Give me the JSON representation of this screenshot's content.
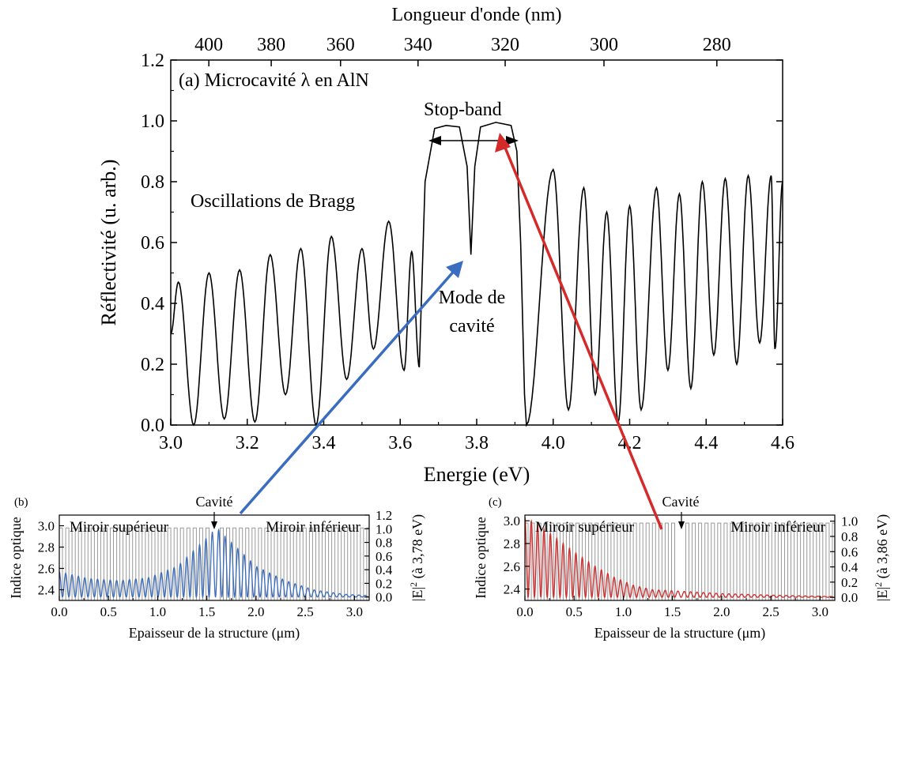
{
  "chart_data": [
    {
      "id": "a",
      "type": "line",
      "panel_label": "(a) Microcavité λ en AlN",
      "xlabel": "Energie (eV)",
      "ylabel": "Réflectivité (u. arb.)",
      "x2label": "Longueur d'onde (nm)",
      "xlim": [
        3.0,
        4.6
      ],
      "ylim": [
        0.0,
        1.2
      ],
      "xticks": [
        "3.0",
        "3.2",
        "3.4",
        "3.6",
        "3.8",
        "4.0",
        "4.2",
        "4.4",
        "4.6"
      ],
      "yticks": [
        "0.0",
        "0.2",
        "0.4",
        "0.6",
        "0.8",
        "1.0",
        "1.2"
      ],
      "x2ticks": [
        "400",
        "380",
        "360",
        "340",
        "320",
        "300",
        "280"
      ],
      "series_color": "#000000",
      "stopband_low_eV": 3.67,
      "stopband_high_eV": 3.92,
      "cavity_mode_eV": 3.78,
      "maxima": [
        [
          3.02,
          0.47
        ],
        [
          3.1,
          0.5
        ],
        [
          3.18,
          0.51
        ],
        [
          3.26,
          0.56
        ],
        [
          3.34,
          0.58
        ],
        [
          3.42,
          0.62
        ],
        [
          3.5,
          0.58
        ],
        [
          3.57,
          0.67
        ],
        [
          3.63,
          0.57
        ],
        [
          4.0,
          0.84
        ],
        [
          4.08,
          0.78
        ],
        [
          4.14,
          0.7
        ],
        [
          4.2,
          0.72
        ],
        [
          4.27,
          0.78
        ],
        [
          4.33,
          0.76
        ],
        [
          4.39,
          0.8
        ],
        [
          4.45,
          0.81
        ],
        [
          4.51,
          0.82
        ],
        [
          4.57,
          0.82
        ],
        [
          4.6,
          0.8
        ]
      ],
      "minima": [
        [
          3.0,
          0.3
        ],
        [
          3.06,
          0.0
        ],
        [
          3.14,
          0.02
        ],
        [
          3.22,
          0.01
        ],
        [
          3.3,
          0.1
        ],
        [
          3.38,
          0.0
        ],
        [
          3.46,
          0.15
        ],
        [
          3.53,
          0.25
        ],
        [
          3.61,
          0.18
        ],
        [
          3.65,
          0.19
        ],
        [
          3.93,
          0.0
        ],
        [
          4.04,
          0.05
        ],
        [
          4.11,
          0.1
        ],
        [
          4.17,
          0.01
        ],
        [
          4.23,
          0.05
        ],
        [
          4.3,
          0.18
        ],
        [
          4.36,
          0.12
        ],
        [
          4.42,
          0.23
        ],
        [
          4.48,
          0.2
        ],
        [
          4.54,
          0.27
        ],
        [
          4.58,
          0.25
        ]
      ],
      "annotations": {
        "stopband": "Stop-band",
        "bragg": "Oscillations de Bragg",
        "mode_line1": "Mode de",
        "mode_line2": "cavité"
      }
    },
    {
      "id": "b",
      "type": "line",
      "panel_label": "(b)",
      "xlabel": "Epaisseur de la structure (μm)",
      "ylabel": "Indice optique",
      "y2label": "|E|² (à 3,78 eV)",
      "xlim": [
        0.0,
        3.15
      ],
      "ylim": [
        2.3,
        3.1
      ],
      "y2lim": [
        -0.05,
        1.2
      ],
      "xticks": [
        "0.0",
        "0.5",
        "1.0",
        "1.5",
        "2.0",
        "2.5",
        "3.0"
      ],
      "yticks": [
        "2.4",
        "2.6",
        "2.8",
        "3.0"
      ],
      "y2ticks": [
        "0.0",
        "0.2",
        "0.4",
        "0.6",
        "0.8",
        "1.0",
        "1.2"
      ],
      "cavity_label": "Cavité",
      "mirror_top_label": "Miroir supérieur",
      "mirror_bottom_label": "Miroir inférieur",
      "index_low": 2.3,
      "index_high": 2.98,
      "cavity_x_um": 1.58,
      "field_color": "#3a6cc0",
      "index_color": "#999999",
      "field_envelope": [
        [
          0.0,
          0.37
        ],
        [
          0.3,
          0.27
        ],
        [
          0.6,
          0.24
        ],
        [
          0.9,
          0.28
        ],
        [
          1.2,
          0.45
        ],
        [
          1.45,
          0.8
        ],
        [
          1.6,
          1.01
        ],
        [
          1.75,
          0.8
        ],
        [
          2.0,
          0.45
        ],
        [
          2.3,
          0.24
        ],
        [
          2.6,
          0.1
        ],
        [
          2.9,
          0.04
        ],
        [
          3.15,
          0.02
        ]
      ]
    },
    {
      "id": "c",
      "type": "line",
      "panel_label": "(c)",
      "xlabel": "Epaisseur de la structure (μm)",
      "ylabel": "Indice optique",
      "y2label": "|E|² (à 3,86 eV)",
      "xlim": [
        0.0,
        3.15
      ],
      "ylim": [
        2.3,
        3.05
      ],
      "y2lim": [
        -0.04,
        1.08
      ],
      "xticks": [
        "0.0",
        "0.5",
        "1.0",
        "1.5",
        "2.0",
        "2.5",
        "3.0"
      ],
      "yticks": [
        "2.4",
        "2.6",
        "2.8",
        "3.0"
      ],
      "y2ticks": [
        "0.0",
        "0.2",
        "0.4",
        "0.6",
        "0.8",
        "1.0"
      ],
      "cavity_label": "Cavité",
      "mirror_top_label": "Miroir supérieur",
      "mirror_bottom_label": "Miroir inférieur",
      "index_low": 2.3,
      "index_high": 2.98,
      "cavity_x_um": 1.58,
      "field_color": "#d42a2a",
      "index_color": "#999999",
      "field_envelope": [
        [
          0.0,
          1.05
        ],
        [
          0.1,
          0.98
        ],
        [
          0.3,
          0.8
        ],
        [
          0.5,
          0.6
        ],
        [
          0.7,
          0.42
        ],
        [
          0.9,
          0.27
        ],
        [
          1.1,
          0.16
        ],
        [
          1.3,
          0.1
        ],
        [
          1.6,
          0.08
        ],
        [
          2.0,
          0.05
        ],
        [
          2.5,
          0.03
        ],
        [
          3.15,
          0.01
        ]
      ]
    }
  ],
  "arrow_colors": {
    "blue": "#3a6cc0",
    "red": "#d42a2a"
  }
}
